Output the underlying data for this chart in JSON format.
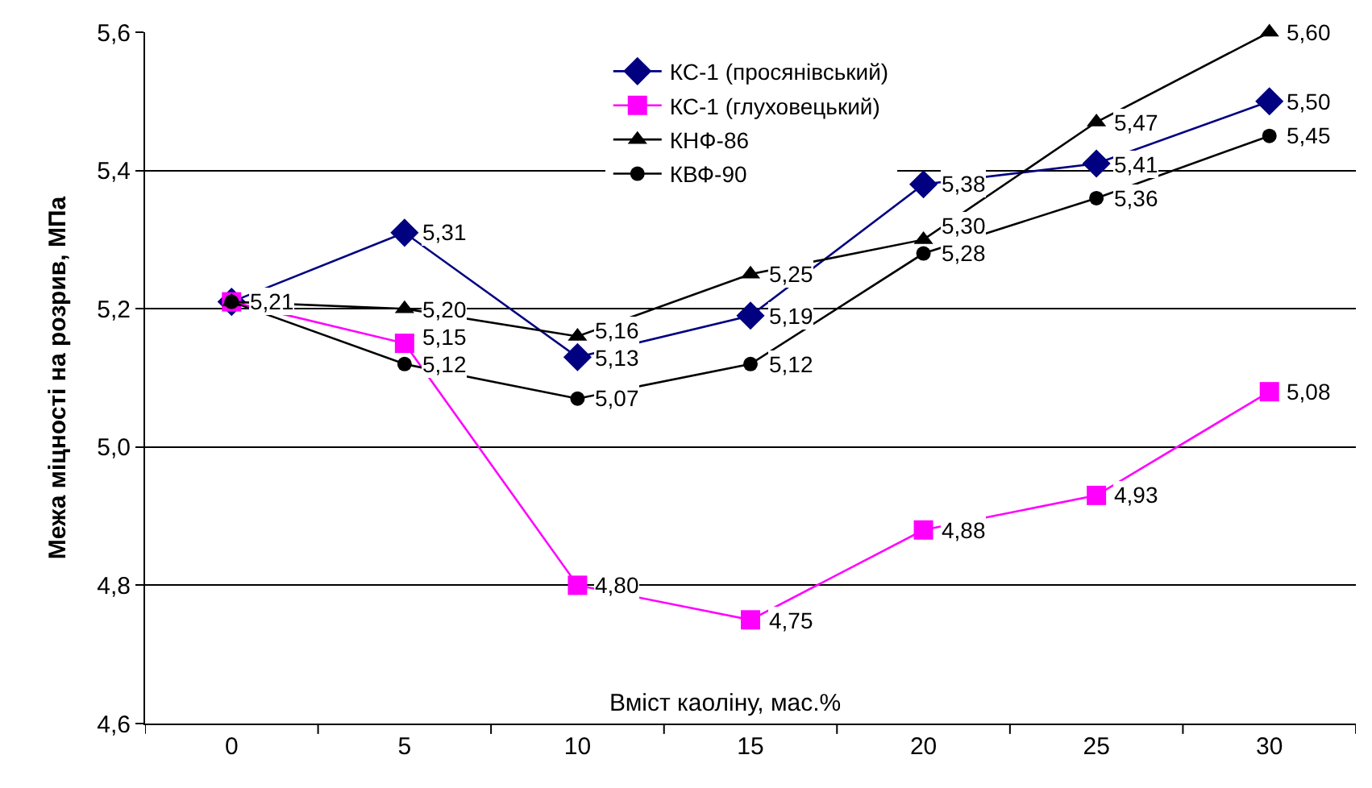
{
  "chart_data": {
    "type": "line",
    "xlabel": "Вміст каоліну, мас.%",
    "ylabel": "Межа міцності на розрив, МПа",
    "categories": [
      "0",
      "5",
      "10",
      "15",
      "20",
      "25",
      "30"
    ],
    "series": [
      {
        "name": "КС-1 (просянівський)",
        "color": "#000080",
        "marker": "diamond",
        "values": [
          5.21,
          5.31,
          5.13,
          5.19,
          5.38,
          5.41,
          5.5
        ],
        "value_labels": [
          null,
          "5,31",
          "5,13",
          "5,19",
          "5,38",
          "5,41",
          "5,50"
        ]
      },
      {
        "name": "КС-1 (глуховецький)",
        "color": "#ff00ff",
        "marker": "square",
        "values": [
          5.21,
          5.15,
          4.8,
          4.75,
          4.88,
          4.93,
          5.08
        ],
        "value_labels": [
          null,
          "5,15",
          "4,80",
          "4,75",
          "4,88",
          "4,93",
          "5,08"
        ]
      },
      {
        "name": "КНФ-86",
        "color": "#000000",
        "marker": "triangle",
        "values": [
          5.21,
          5.2,
          5.16,
          5.25,
          5.3,
          5.47,
          5.6
        ],
        "value_labels": [
          "5,21",
          "5,20",
          "5,16",
          "5,25",
          "5,30",
          "5,47",
          "5,60"
        ]
      },
      {
        "name": "КВФ-90",
        "color": "#000000",
        "marker": "circle",
        "values": [
          5.21,
          5.12,
          5.07,
          5.12,
          5.28,
          5.36,
          5.45
        ],
        "value_labels": [
          null,
          "5,12",
          "5,07",
          "5,12",
          "5,28",
          "5,36",
          "5,45"
        ]
      }
    ],
    "ylim": [
      4.6,
      5.6
    ],
    "yticks": [
      {
        "value": 4.6,
        "label": "4,6"
      },
      {
        "value": 4.8,
        "label": "4,8"
      },
      {
        "value": 5.0,
        "label": "5,0"
      },
      {
        "value": 5.2,
        "label": "5,2"
      },
      {
        "value": 5.4,
        "label": "5,4"
      },
      {
        "value": 5.6,
        "label": "5,6"
      }
    ],
    "grid": "y",
    "legend": "top",
    "line_style": "solid"
  }
}
